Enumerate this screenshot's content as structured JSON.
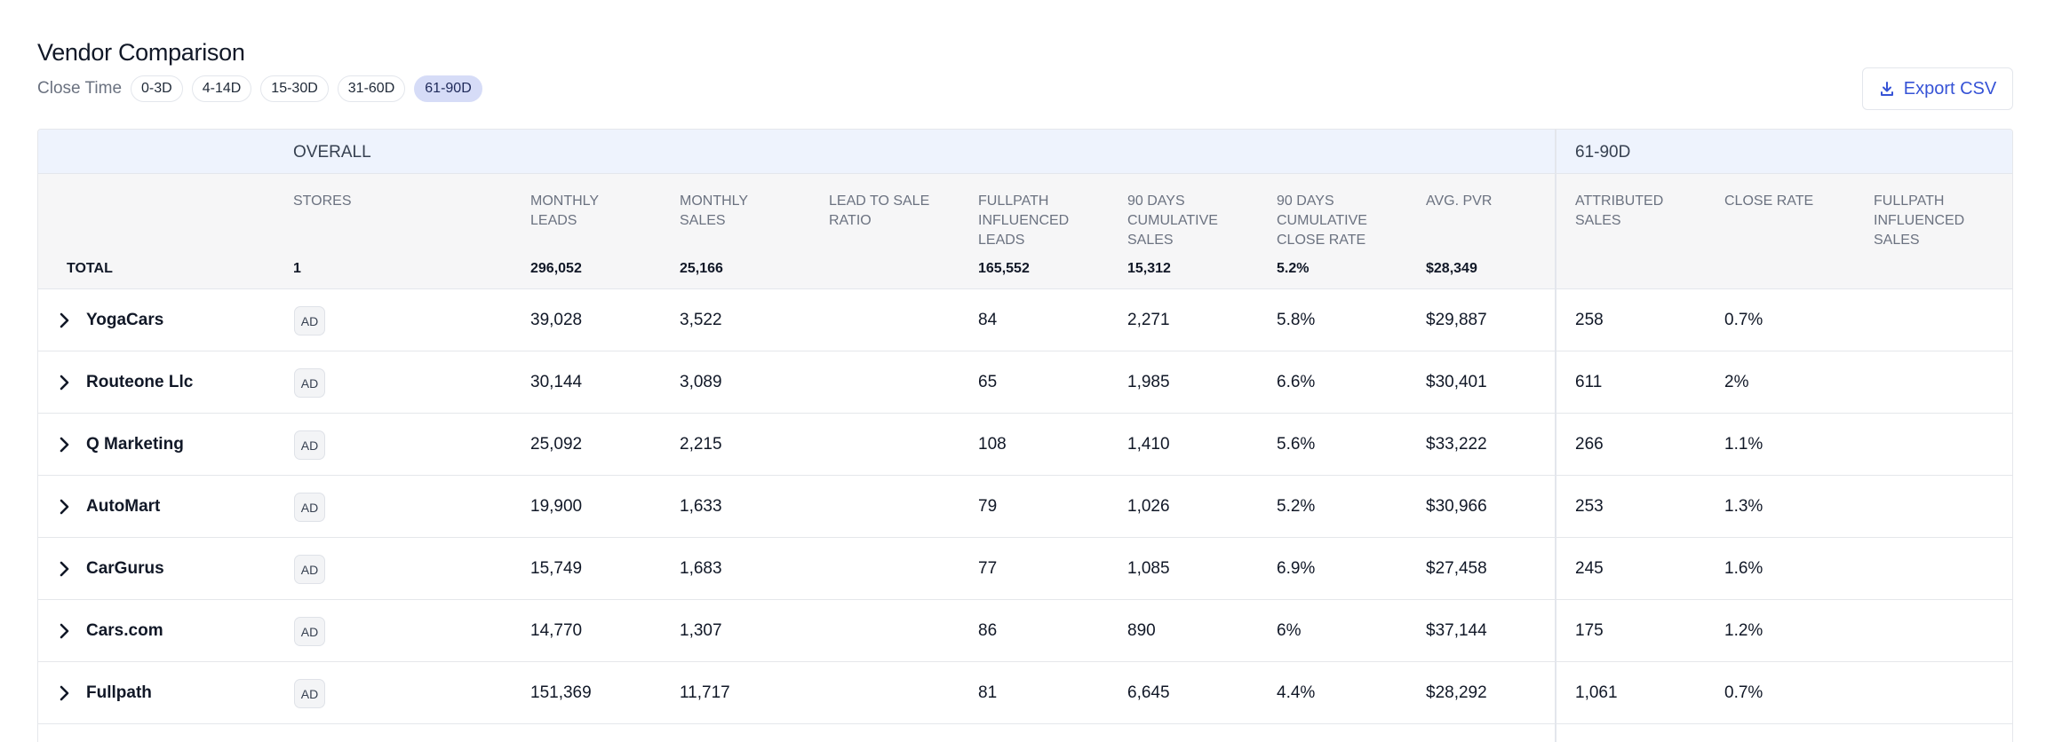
{
  "page": {
    "title": "Vendor Comparison"
  },
  "filters": {
    "label": "Close Time",
    "chips": [
      "0-3D",
      "4-14D",
      "15-30D",
      "31-60D",
      "61-90D"
    ],
    "active": "61-90D"
  },
  "export": {
    "label": "Export CSV",
    "icon": "download-icon",
    "color": "#3653d6"
  },
  "table": {
    "groups": {
      "overall": "OVERALL",
      "period": "61-90D"
    },
    "columns": [
      "STORES",
      "MONTHLY LEADS",
      "MONTHLY SALES",
      "LEAD TO SALE RATIO",
      "FULLPATH INFLUENCED LEADS",
      "90 DAYS CUMULATIVE SALES",
      "90 DAYS CUMULATIVE CLOSE RATE",
      "AVG. PVR",
      "ATTRIBUTED SALES",
      "CLOSE RATE",
      "FULLPATH INFLUENCED SALES"
    ],
    "total": {
      "label": "TOTAL",
      "stores": "1",
      "monthly_leads": "296,052",
      "monthly_sales": "25,166",
      "lead_to_sale": "",
      "influenced_leads": "165,552",
      "cumulative_sales": "15,312",
      "close_rate_90": "5.2%",
      "avg_pvr": "$28,349"
    },
    "rows": [
      {
        "vendor": "YogaCars",
        "badge": "AD",
        "monthly_leads": "39,028",
        "monthly_sales": "3,522",
        "lead_to_sale": "",
        "influenced_leads": "84",
        "cumulative_sales": "2,271",
        "close_rate_90": "5.8%",
        "avg_pvr": "$29,887",
        "attributed_sales": "258",
        "close_rate": "0.7%",
        "influenced_sales": ""
      },
      {
        "vendor": "Routeone Llc",
        "badge": "AD",
        "monthly_leads": "30,144",
        "monthly_sales": "3,089",
        "lead_to_sale": "",
        "influenced_leads": "65",
        "cumulative_sales": "1,985",
        "close_rate_90": "6.6%",
        "avg_pvr": "$30,401",
        "attributed_sales": "611",
        "close_rate": "2%",
        "influenced_sales": ""
      },
      {
        "vendor": "Q Marketing",
        "badge": "AD",
        "monthly_leads": "25,092",
        "monthly_sales": "2,215",
        "lead_to_sale": "",
        "influenced_leads": "108",
        "cumulative_sales": "1,410",
        "close_rate_90": "5.6%",
        "avg_pvr": "$33,222",
        "attributed_sales": "266",
        "close_rate": "1.1%",
        "influenced_sales": ""
      },
      {
        "vendor": "AutoMart",
        "badge": "AD",
        "monthly_leads": "19,900",
        "monthly_sales": "1,633",
        "lead_to_sale": "",
        "influenced_leads": "79",
        "cumulative_sales": "1,026",
        "close_rate_90": "5.2%",
        "avg_pvr": "$30,966",
        "attributed_sales": "253",
        "close_rate": "1.3%",
        "influenced_sales": ""
      },
      {
        "vendor": "CarGurus",
        "badge": "AD",
        "monthly_leads": "15,749",
        "monthly_sales": "1,683",
        "lead_to_sale": "",
        "influenced_leads": "77",
        "cumulative_sales": "1,085",
        "close_rate_90": "6.9%",
        "avg_pvr": "$27,458",
        "attributed_sales": "245",
        "close_rate": "1.6%",
        "influenced_sales": ""
      },
      {
        "vendor": "Cars.com",
        "badge": "AD",
        "monthly_leads": "14,770",
        "monthly_sales": "1,307",
        "lead_to_sale": "",
        "influenced_leads": "86",
        "cumulative_sales": "890",
        "close_rate_90": "6%",
        "avg_pvr": "$37,144",
        "attributed_sales": "175",
        "close_rate": "1.2%",
        "influenced_sales": ""
      },
      {
        "vendor": "Fullpath",
        "badge": "AD",
        "monthly_leads": "151,369",
        "monthly_sales": "11,717",
        "lead_to_sale": "",
        "influenced_leads": "81",
        "cumulative_sales": "6,645",
        "close_rate_90": "4.4%",
        "avg_pvr": "$28,292",
        "attributed_sales": "1,061",
        "close_rate": "0.7%",
        "influenced_sales": ""
      }
    ]
  }
}
